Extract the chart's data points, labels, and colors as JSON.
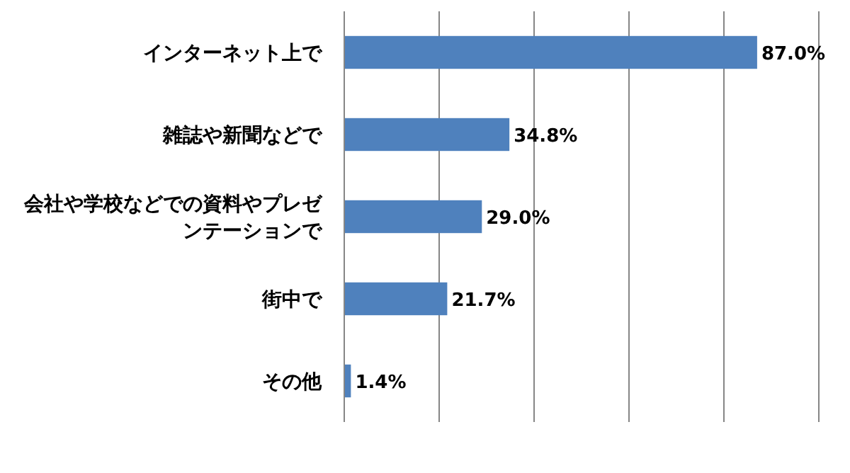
{
  "chart_data": {
    "type": "bar",
    "orientation": "horizontal",
    "categories": [
      "インターネット上で",
      "雑誌や新聞などで",
      "会社や学校などでの資料やプレゼンテーションで",
      "街中で",
      "その他"
    ],
    "values": [
      87.0,
      34.8,
      29.0,
      21.7,
      1.4
    ],
    "color": "#4f81bd",
    "value_labels": [
      "87.0%",
      "34.8%",
      "29.0%",
      "21.7%",
      "1.4%"
    ],
    "xlim": [
      0,
      100
    ],
    "xticks": [
      {
        "value": 0,
        "label": null
      },
      {
        "value": 20,
        "label": null
      },
      {
        "value": 40,
        "label": null
      },
      {
        "value": 60,
        "label": null
      },
      {
        "value": 80,
        "label": null
      },
      {
        "value": 100,
        "label": null
      }
    ],
    "grid": "x",
    "tick_labels": "y"
  }
}
